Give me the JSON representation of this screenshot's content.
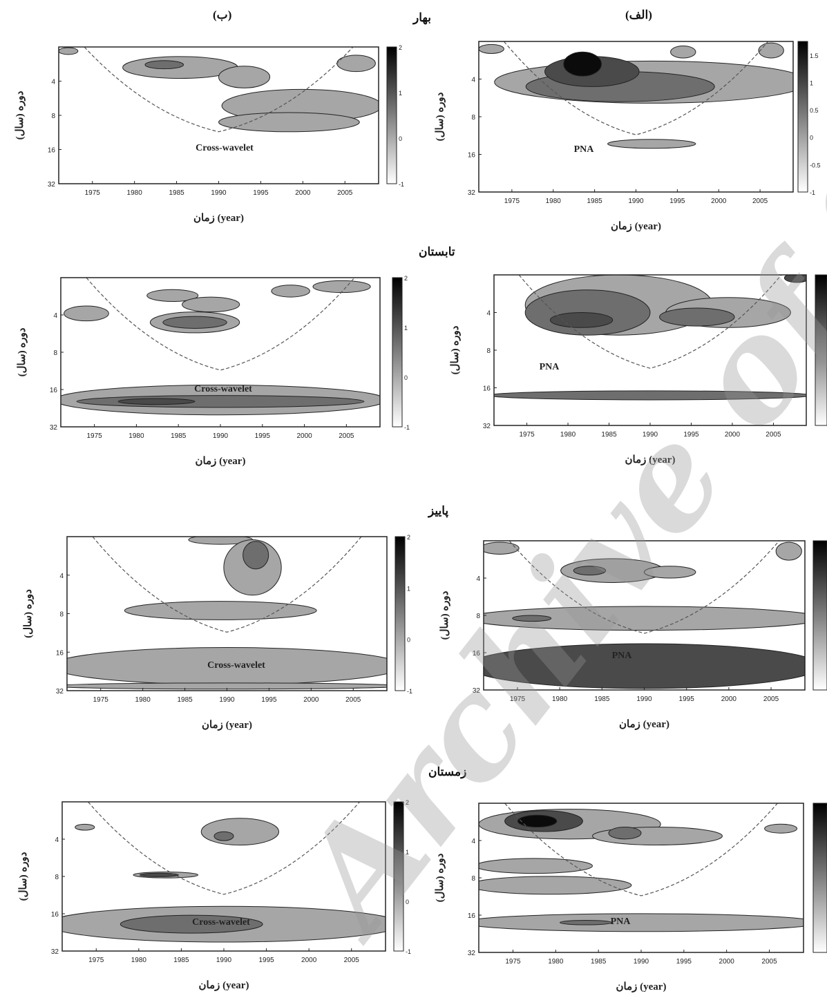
{
  "panel_headers": {
    "left": "(ب)",
    "right": "(الف)"
  },
  "watermark": "Archive of SID",
  "colorbar_ticks": [
    "2",
    "1",
    "0",
    "-1"
  ],
  "colorbar_ticks_fine": [
    "1.5",
    "1",
    "0.5",
    "0",
    "-0.5",
    "-1"
  ],
  "colors": {
    "level1": "#a6a6a6",
    "level2": "#6e6e6e",
    "level3": "#4a4a4a",
    "level4": "#0b0b0b",
    "coi": "#555555"
  },
  "chart_data": [
    {
      "id": "spring-b",
      "type": "heatmap",
      "season": "بهار",
      "label": "Cross-wavelet",
      "xlabel": "زمان (year)",
      "ylabel": "دوره (سال)",
      "xticks": [
        "1975",
        "1980",
        "1985",
        "1990",
        "1995",
        "2000",
        "2005"
      ],
      "yticks": [
        "4",
        "8",
        "16",
        "32"
      ]
    },
    {
      "id": "spring-a",
      "type": "heatmap",
      "season": "",
      "label": "PNA",
      "xlabel": "زمان (year)",
      "ylabel": "دوره (سال)",
      "xticks": [
        "1975",
        "1980",
        "1985",
        "1990",
        "1995",
        "2000",
        "2005"
      ],
      "yticks": [
        "4",
        "8",
        "16",
        "32"
      ]
    },
    {
      "id": "summer-b",
      "type": "heatmap",
      "season": "تابستان",
      "label": "Cross-wavelet",
      "xlabel": "زمان (year)",
      "ylabel": "دوره (سال)",
      "xticks": [
        "1975",
        "1980",
        "1985",
        "1990",
        "1995",
        "2000",
        "2005"
      ],
      "yticks": [
        "4",
        "8",
        "16",
        "32"
      ]
    },
    {
      "id": "summer-a",
      "type": "heatmap",
      "season": "",
      "label": "PNA",
      "xlabel": "زمان (year)",
      "ylabel": "دوره (سال)",
      "xticks": [
        "1975",
        "1980",
        "1985",
        "1990",
        "1995",
        "2000",
        "2005"
      ],
      "yticks": [
        "4",
        "8",
        "16",
        "32"
      ]
    },
    {
      "id": "autumn-b",
      "type": "heatmap",
      "season": "پاییز",
      "label": "Cross-wavelet",
      "xlabel": "زمان (year)",
      "ylabel": "دوره (سال)",
      "xticks": [
        "1975",
        "1980",
        "1985",
        "1990",
        "1995",
        "2000",
        "2005"
      ],
      "yticks": [
        "4",
        "8",
        "16",
        "32"
      ]
    },
    {
      "id": "autumn-a",
      "type": "heatmap",
      "season": "",
      "label": "PNA",
      "xlabel": "زمان (year)",
      "ylabel": "دوره (سال)",
      "xticks": [
        "1975",
        "1980",
        "1985",
        "1990",
        "1995",
        "2000",
        "2005"
      ],
      "yticks": [
        "4",
        "8",
        "16",
        "32"
      ]
    },
    {
      "id": "winter-b",
      "type": "heatmap",
      "season": "زمستان",
      "label": "Cross-wavelet",
      "xlabel": "زمان (year)",
      "ylabel": "دوره (سال)",
      "xticks": [
        "1975",
        "1980",
        "1985",
        "1990",
        "1995",
        "2000",
        "2005"
      ],
      "yticks": [
        "4",
        "8",
        "16",
        "32"
      ]
    },
    {
      "id": "winter-a",
      "type": "heatmap",
      "season": "",
      "label": "PNA",
      "xlabel": "زمان (year)",
      "ylabel": "دوره (سال)",
      "xticks": [
        "1975",
        "1980",
        "1985",
        "1990",
        "1995",
        "2000",
        "2005"
      ],
      "yticks": [
        "4",
        "8",
        "16",
        "32"
      ]
    }
  ]
}
